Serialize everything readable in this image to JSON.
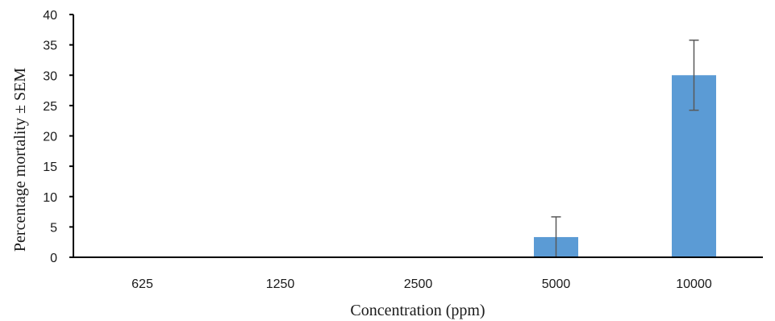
{
  "chart_data": {
    "type": "bar",
    "title": "",
    "xlabel": "Concentration  (ppm)",
    "ylabel": "Percentage mortality ± SEM",
    "categories": [
      "625",
      "1250",
      "2500",
      "5000",
      "10000"
    ],
    "values": [
      0,
      0,
      0,
      3.33,
      30
    ],
    "error": [
      0,
      0,
      0,
      3.33,
      5.77
    ],
    "ylim": [
      0,
      40
    ],
    "yticks": [
      0,
      5,
      10,
      15,
      20,
      25,
      30,
      35,
      40
    ],
    "grid": false,
    "legend": "none",
    "bar_color": "#5b9bd5",
    "error_bar_color": "#595959",
    "axis_color": "#000000"
  }
}
